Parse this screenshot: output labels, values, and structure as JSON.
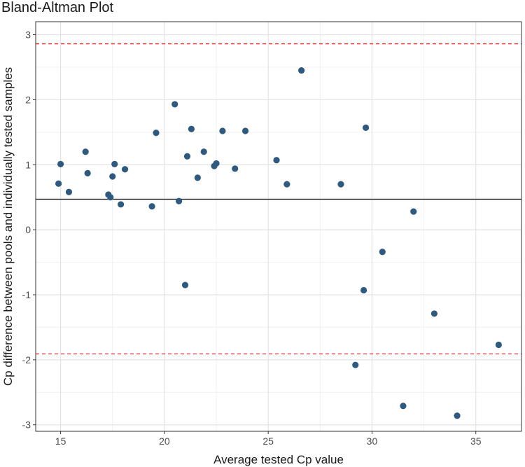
{
  "chart_data": {
    "type": "scatter",
    "title": "Bland-Altman Plot",
    "xlabel": "Average tested Cp value",
    "ylabel": "Cp difference between pools and individually tested samples",
    "xlim": [
      13.8,
      37.2
    ],
    "ylim": [
      -3.1,
      3.2
    ],
    "x_ticks": [
      15,
      20,
      25,
      30,
      35
    ],
    "y_ticks": [
      -3,
      -2,
      -1,
      0,
      1,
      2,
      3
    ],
    "grid": true,
    "mean_line": 0.47,
    "limits_of_agreement": [
      2.86,
      -1.91
    ],
    "point_color": "#2e5a80",
    "mean_line_color": "#000000",
    "loa_line_color": "#e8282b",
    "points": [
      {
        "x": 14.9,
        "y": 0.71
      },
      {
        "x": 15.0,
        "y": 1.01
      },
      {
        "x": 15.4,
        "y": 0.58
      },
      {
        "x": 16.2,
        "y": 1.2
      },
      {
        "x": 16.3,
        "y": 0.87
      },
      {
        "x": 17.3,
        "y": 0.54
      },
      {
        "x": 17.4,
        "y": 0.5
      },
      {
        "x": 17.5,
        "y": 0.82
      },
      {
        "x": 17.6,
        "y": 1.01
      },
      {
        "x": 17.9,
        "y": 0.39
      },
      {
        "x": 18.1,
        "y": 0.93
      },
      {
        "x": 19.4,
        "y": 0.36
      },
      {
        "x": 19.6,
        "y": 1.49
      },
      {
        "x": 20.5,
        "y": 1.93
      },
      {
        "x": 20.7,
        "y": 0.44
      },
      {
        "x": 21.0,
        "y": -0.85
      },
      {
        "x": 21.1,
        "y": 1.13
      },
      {
        "x": 21.3,
        "y": 1.55
      },
      {
        "x": 21.6,
        "y": 0.8
      },
      {
        "x": 21.9,
        "y": 1.2
      },
      {
        "x": 22.4,
        "y": 0.98
      },
      {
        "x": 22.5,
        "y": 1.02
      },
      {
        "x": 22.8,
        "y": 1.52
      },
      {
        "x": 23.4,
        "y": 0.94
      },
      {
        "x": 23.9,
        "y": 1.52
      },
      {
        "x": 25.4,
        "y": 1.07
      },
      {
        "x": 25.9,
        "y": 0.7
      },
      {
        "x": 26.6,
        "y": 2.45
      },
      {
        "x": 28.5,
        "y": 0.7
      },
      {
        "x": 29.2,
        "y": -2.08
      },
      {
        "x": 29.6,
        "y": -0.93
      },
      {
        "x": 29.7,
        "y": 1.57
      },
      {
        "x": 30.5,
        "y": -0.34
      },
      {
        "x": 31.5,
        "y": -2.71
      },
      {
        "x": 32.0,
        "y": 0.28
      },
      {
        "x": 33.0,
        "y": -1.29
      },
      {
        "x": 34.1,
        "y": -2.86
      },
      {
        "x": 36.1,
        "y": -1.77
      }
    ]
  }
}
